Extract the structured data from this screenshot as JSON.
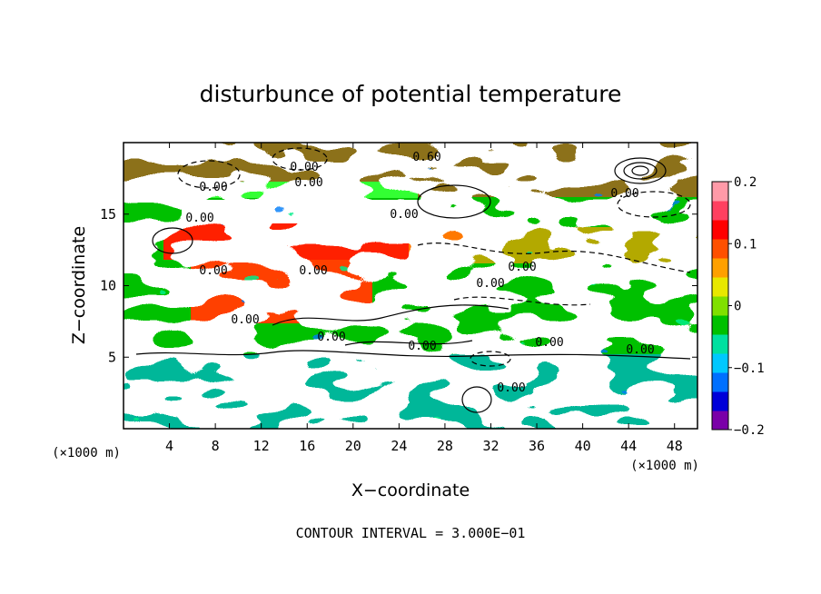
{
  "chart_data": {
    "type": "heatmap",
    "title": "disturbunce of potential temperature",
    "xlabel": "X−coordinate",
    "ylabel": "Z−coordinate",
    "x_unit_left": "(×1000 m)",
    "x_unit_right": "(×1000 m)",
    "xlim": [
      0,
      50
    ],
    "ylim": [
      0,
      20
    ],
    "x_ticks": [
      "4",
      "8",
      "12",
      "16",
      "20",
      "24",
      "28",
      "32",
      "36",
      "40",
      "44",
      "48"
    ],
    "y_ticks": [
      "5",
      "10",
      "15"
    ],
    "colorbar": {
      "range": [
        -0.2,
        0.2
      ],
      "tick_labels": [
        "0.2",
        "0.1",
        "0",
        "−0.1",
        "−0.2"
      ],
      "colors": [
        "#7a00a8",
        "#0000d8",
        "#0070ff",
        "#00c8ff",
        "#00e0a0",
        "#00c000",
        "#80e000",
        "#e8e800",
        "#ffa000",
        "#ff5000",
        "#ff0000",
        "#ff4060",
        "#ff9aa8"
      ]
    },
    "contour_labels": [
      "0.00",
      "0.00",
      "0.60",
      "0.00",
      "0.00",
      "0.00",
      "0.00",
      "0.00",
      "0.00",
      "0.00",
      "0.00",
      "0.00",
      "0.00",
      "0.00",
      "0.00",
      "0.00",
      "0.00"
    ],
    "footer": "CONTOUR INTERVAL = 3.000E−01"
  }
}
